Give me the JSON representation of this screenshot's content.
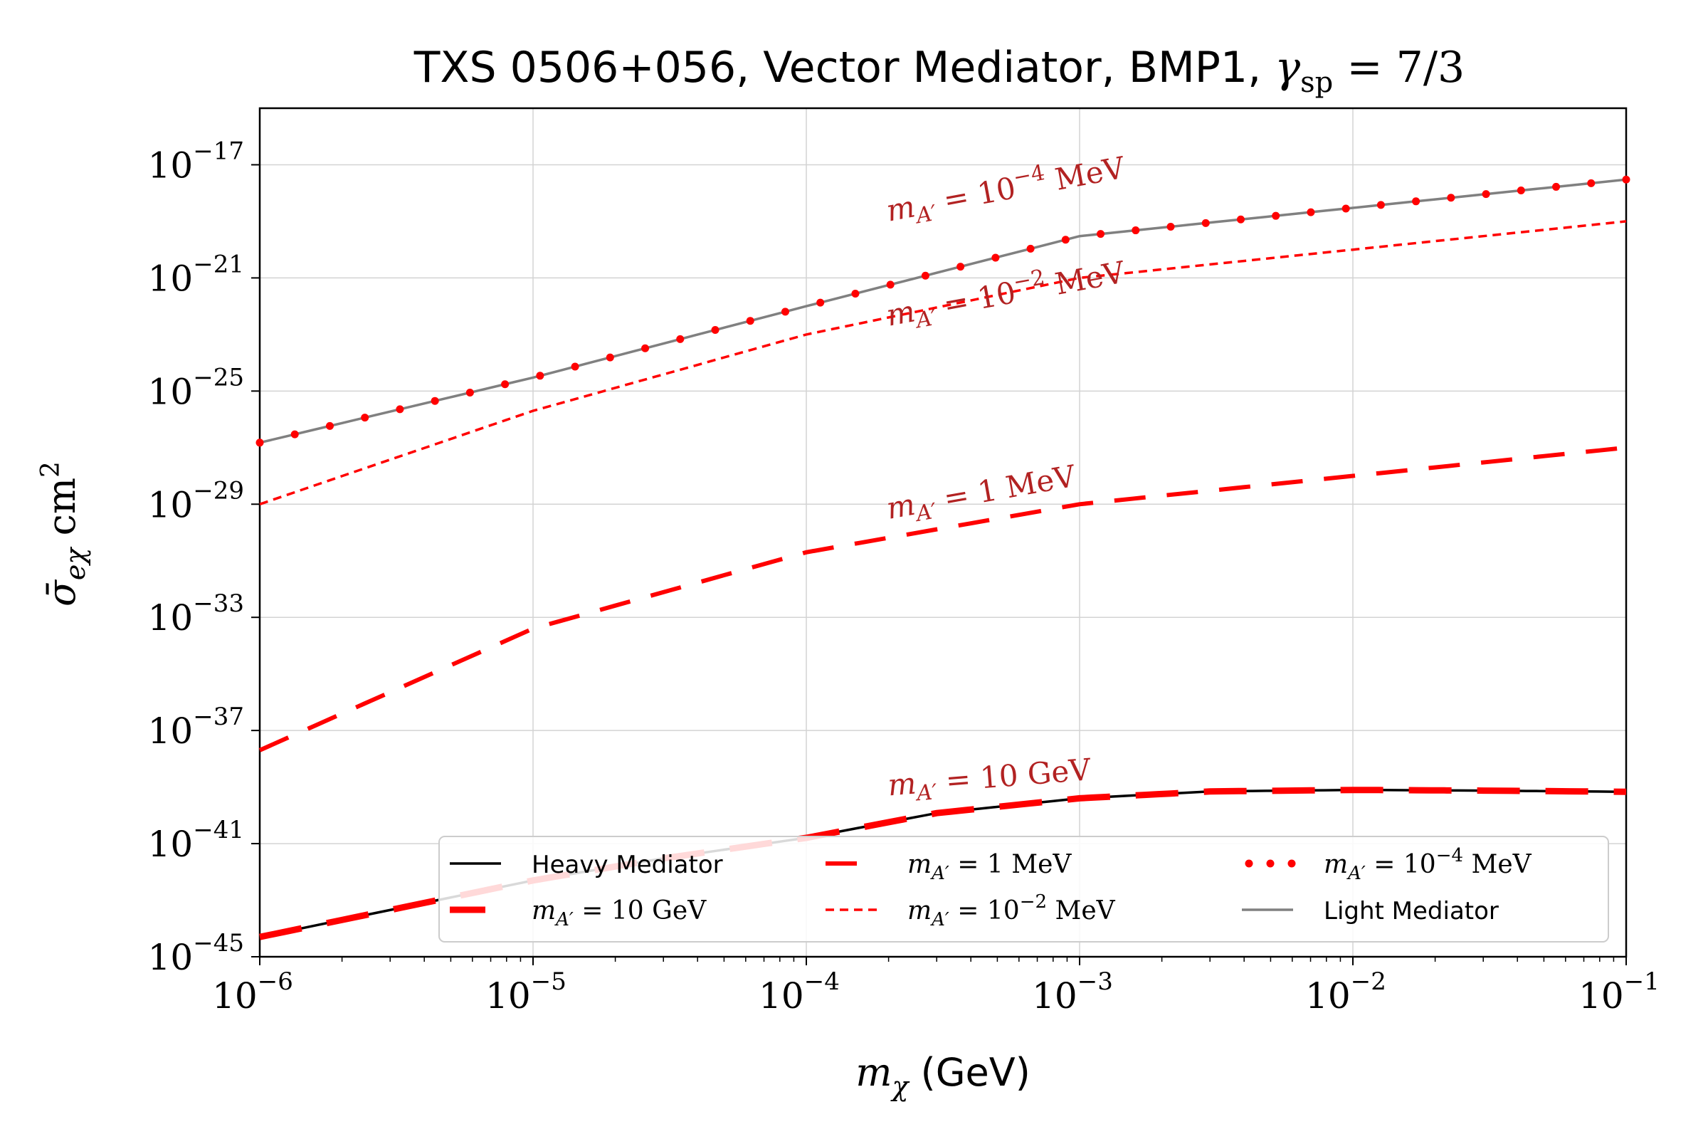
{
  "chart_data": {
    "type": "line",
    "title": "TXS 0506+056, Vector Mediator, BMP1, γsp = 7/3",
    "xlabel": "mχ (GeV)",
    "ylabel": "σ̄eχ cm²",
    "xscale": "log",
    "yscale": "log",
    "xlim": [
      1e-06,
      0.1
    ],
    "ylim": [
      1e-45,
      1e-15
    ],
    "grid": true,
    "legend_position": "lower-right",
    "x_ticks": [
      {
        "value": 1e-06,
        "label": "10",
        "exp": "−6"
      },
      {
        "value": 1e-05,
        "label": "10",
        "exp": "−5"
      },
      {
        "value": 0.0001,
        "label": "10",
        "exp": "−4"
      },
      {
        "value": 0.001,
        "label": "10",
        "exp": "−3"
      },
      {
        "value": 0.01,
        "label": "10",
        "exp": "−2"
      },
      {
        "value": 0.1,
        "label": "10",
        "exp": "−1"
      }
    ],
    "y_ticks": [
      {
        "value": 1e-45,
        "label": "10",
        "exp": "−45"
      },
      {
        "value": 1e-41,
        "label": "10",
        "exp": "−41"
      },
      {
        "value": 1e-37,
        "label": "10",
        "exp": "−37"
      },
      {
        "value": 1e-33,
        "label": "10",
        "exp": "−33"
      },
      {
        "value": 1e-29,
        "label": "10",
        "exp": "−29"
      },
      {
        "value": 1e-25,
        "label": "10",
        "exp": "−25"
      },
      {
        "value": 1e-21,
        "label": "10",
        "exp": "−21"
      },
      {
        "value": 1e-17,
        "label": "10",
        "exp": "−17"
      }
    ],
    "series": [
      {
        "name": "Heavy Mediator",
        "color": "#000000",
        "style": "solid",
        "x": [
          1e-06,
          1e-05,
          3e-05,
          0.0001,
          0.0003,
          0.001,
          0.003,
          0.01,
          0.03,
          0.1
        ],
        "y": [
          5e-45,
          5e-43,
          3e-42,
          1.6e-41,
          1.2e-40,
          4e-40,
          7e-40,
          7.9e-40,
          7.5e-40,
          6.8e-40
        ]
      },
      {
        "name": "mA′ = 10 GeV",
        "color": "#ff0000",
        "style": "dashed-thick",
        "x": [
          1e-06,
          1e-05,
          3e-05,
          0.0001,
          0.0003,
          0.001,
          0.003,
          0.01,
          0.03,
          0.1
        ],
        "y": [
          5e-45,
          5e-43,
          3e-42,
          1.6e-41,
          1.2e-40,
          4e-40,
          7e-40,
          7.9e-40,
          7.5e-40,
          6.8e-40
        ]
      },
      {
        "name": "mA′ = 1 MeV",
        "color": "#ff0000",
        "style": "dashed",
        "x": [
          1e-06,
          1e-05,
          0.0001,
          0.001,
          0.01,
          0.1
        ],
        "y": [
          2e-38,
          4e-34,
          2e-31,
          1e-29,
          1e-28,
          1e-27
        ]
      },
      {
        "name": "mA′ = 10⁻² MeV",
        "color": "#ff0000",
        "style": "dashed-fine",
        "x": [
          1e-06,
          1e-05,
          0.0001,
          0.001,
          0.01,
          0.1
        ],
        "y": [
          1e-29,
          2e-26,
          1e-23,
          1e-21,
          1e-20,
          1e-19
        ]
      },
      {
        "name": "Light Mediator",
        "color": "#808080",
        "style": "solid",
        "x": [
          1e-06,
          1e-05,
          0.0001,
          0.001,
          0.01,
          0.1
        ],
        "y": [
          1.5e-27,
          3e-25,
          1e-22,
          3e-20,
          3e-19,
          3e-18
        ]
      },
      {
        "name": "mA′ = 10⁻⁴ MeV",
        "color": "#ff0000",
        "style": "dotted",
        "x": [
          1e-06,
          1e-05,
          0.0001,
          0.001,
          0.01,
          0.1
        ],
        "y": [
          1.5e-27,
          3e-25,
          1e-22,
          3e-20,
          3e-19,
          3e-18
        ]
      }
    ],
    "annotations": [
      {
        "id": "ann-1e-4",
        "text": "mA′ = 10⁻⁴ MeV",
        "x": 0.0002,
        "y": 1e-19
      },
      {
        "id": "ann-1e-2",
        "text": "mA′ = 10⁻² MeV",
        "x": 0.0002,
        "y": 2e-23
      },
      {
        "id": "ann-1",
        "text": "mA′ = 1 MeV",
        "x": 0.0002,
        "y": 3e-30
      },
      {
        "id": "ann-10",
        "text": "mA′ = 10 GeV",
        "x": 0.0002,
        "y": 5e-40
      }
    ],
    "legend": [
      {
        "label": "Heavy Mediator",
        "series": "Heavy Mediator"
      },
      {
        "label": "mA′ = 10 GeV",
        "series": "mA′ = 10 GeV"
      },
      {
        "label": "mA′ = 1 MeV",
        "series": "mA′ = 1 MeV"
      },
      {
        "label": "mA′ = 10⁻² MeV",
        "series": "mA′ = 10⁻² MeV"
      },
      {
        "label": "mA′ = 10⁻⁴ MeV",
        "series": "mA′ = 10⁻⁴ MeV"
      },
      {
        "label": "Light Mediator",
        "series": "Light Mediator"
      }
    ]
  }
}
